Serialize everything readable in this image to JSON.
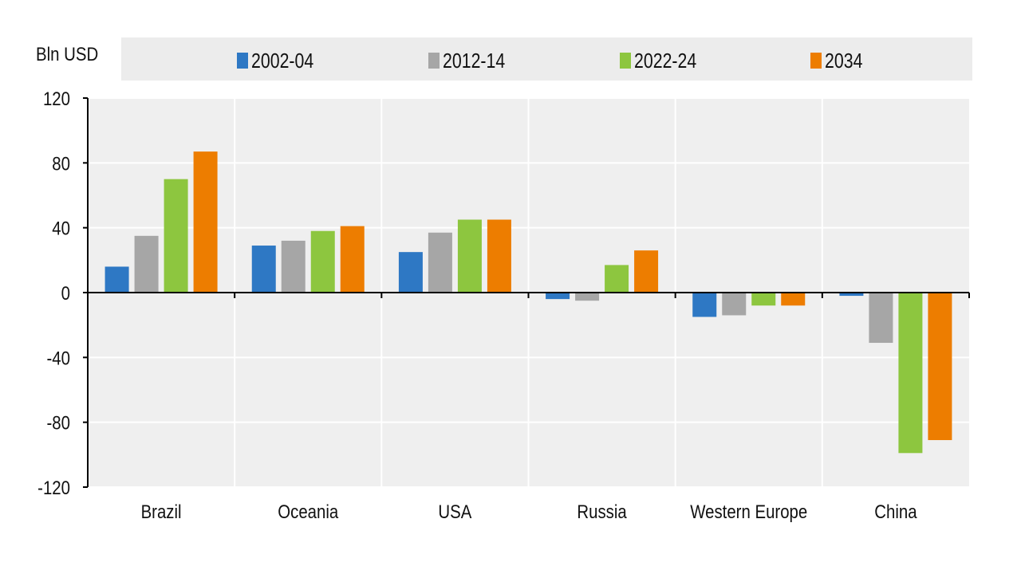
{
  "chart_data": {
    "type": "bar",
    "ylabel": "Bln USD",
    "ylim": [
      -120,
      120
    ],
    "yticks": [
      120,
      80,
      40,
      0,
      -40,
      -80,
      -120
    ],
    "grid": true,
    "legend_position": "top",
    "categories": [
      "Brazil",
      "Oceania",
      "USA",
      "Russia",
      "Western Europe",
      "China"
    ],
    "series": [
      {
        "name": "2002-04",
        "color": "#2e78c4",
        "values": [
          16,
          29,
          25,
          -4,
          -15,
          -2
        ]
      },
      {
        "name": "2012-14",
        "color": "#a6a6a6",
        "values": [
          35,
          32,
          37,
          -5,
          -14,
          -31
        ]
      },
      {
        "name": "2022-24",
        "color": "#8dc63f",
        "values": [
          70,
          38,
          45,
          17,
          -8,
          -99
        ]
      },
      {
        "name": "2034",
        "color": "#ed7d00",
        "values": [
          87,
          41,
          45,
          26,
          -8,
          -91
        ]
      }
    ]
  }
}
